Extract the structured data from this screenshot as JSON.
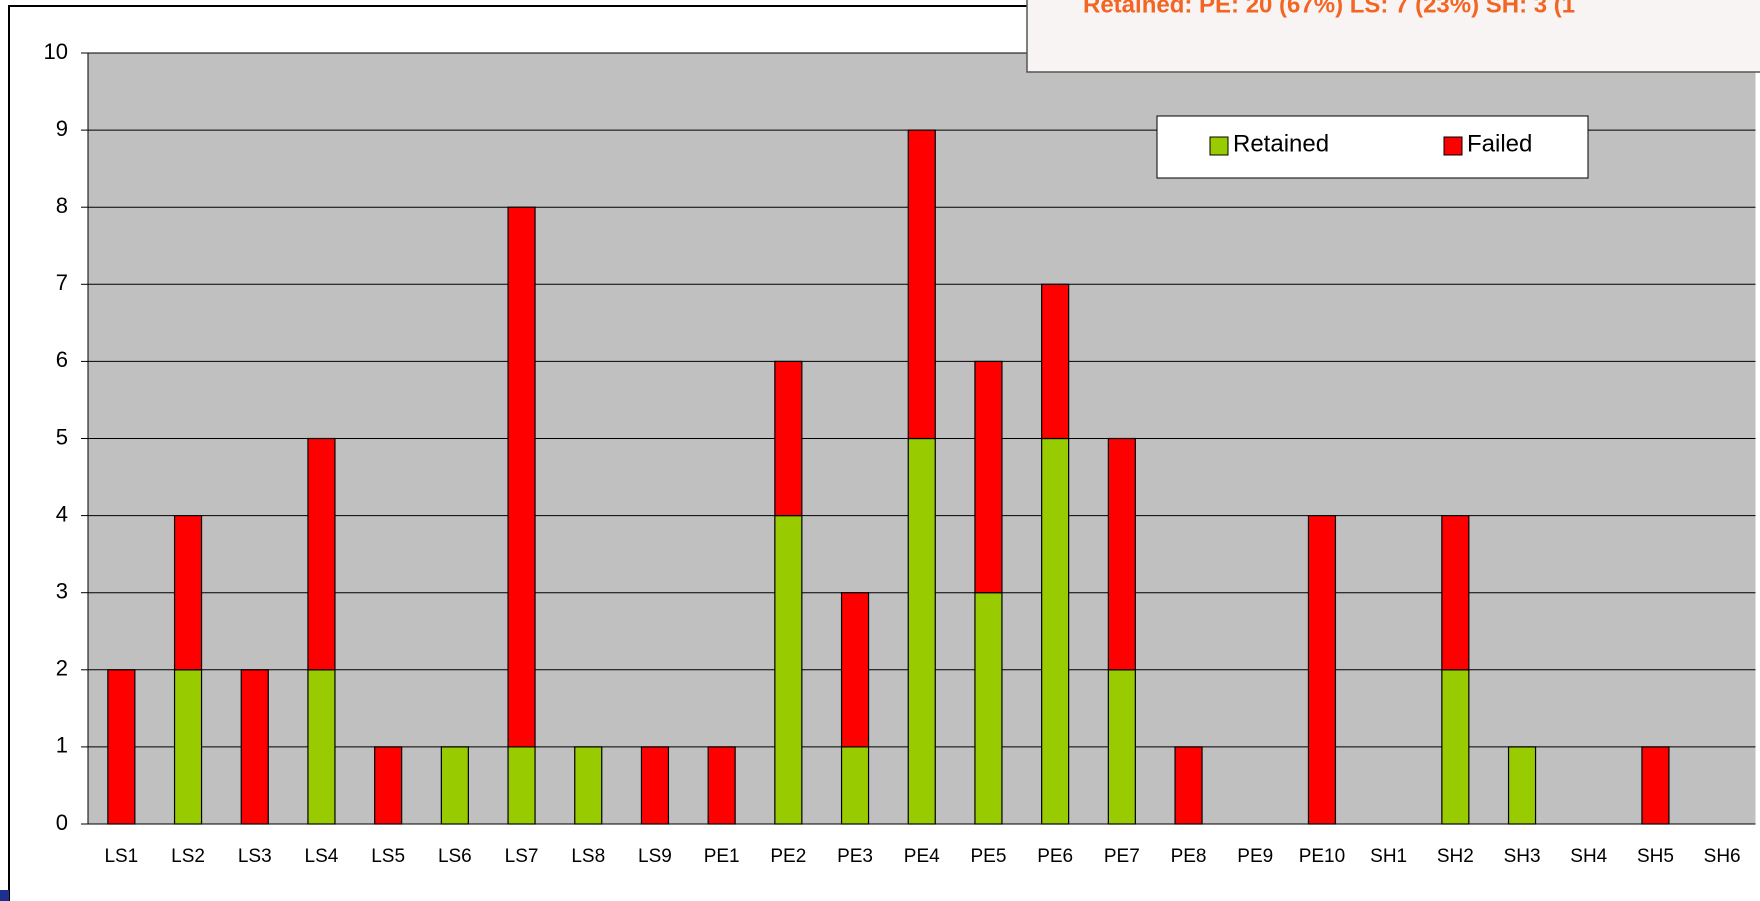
{
  "chart_data": {
    "type": "stacked_bar",
    "annotation": "Retained:   PE: 20 (67%) LS: 7 (23%) SH: 3 (1",
    "categories": [
      "LS1",
      "LS2",
      "LS3",
      "LS4",
      "LS5",
      "LS6",
      "LS7",
      "LS8",
      "LS9",
      "PE1",
      "PE2",
      "PE3",
      "PE4",
      "PE5",
      "PE6",
      "PE7",
      "PE8",
      "PE9",
      "PE10",
      "SH1",
      "SH2",
      "SH3",
      "SH4",
      "SH5",
      "SH6"
    ],
    "series": [
      {
        "name": "Retained",
        "color": "#99cc00",
        "values": [
          0,
          2,
          0,
          2,
          0,
          1,
          1,
          1,
          0,
          0,
          4,
          1,
          5,
          3,
          5,
          2,
          0,
          0,
          0,
          0,
          2,
          1,
          0,
          0,
          0
        ]
      },
      {
        "name": "Failed",
        "color": "#ff0000",
        "values": [
          2,
          2,
          2,
          3,
          1,
          0,
          7,
          0,
          1,
          1,
          2,
          2,
          4,
          3,
          2,
          3,
          1,
          0,
          4,
          0,
          2,
          0,
          0,
          1,
          0
        ]
      }
    ],
    "ylim": [
      0,
      10
    ],
    "yticks": [
      0,
      1,
      2,
      3,
      4,
      5,
      6,
      7,
      8,
      9,
      10
    ],
    "grid": true,
    "plot_background": "#c0c0c0"
  }
}
